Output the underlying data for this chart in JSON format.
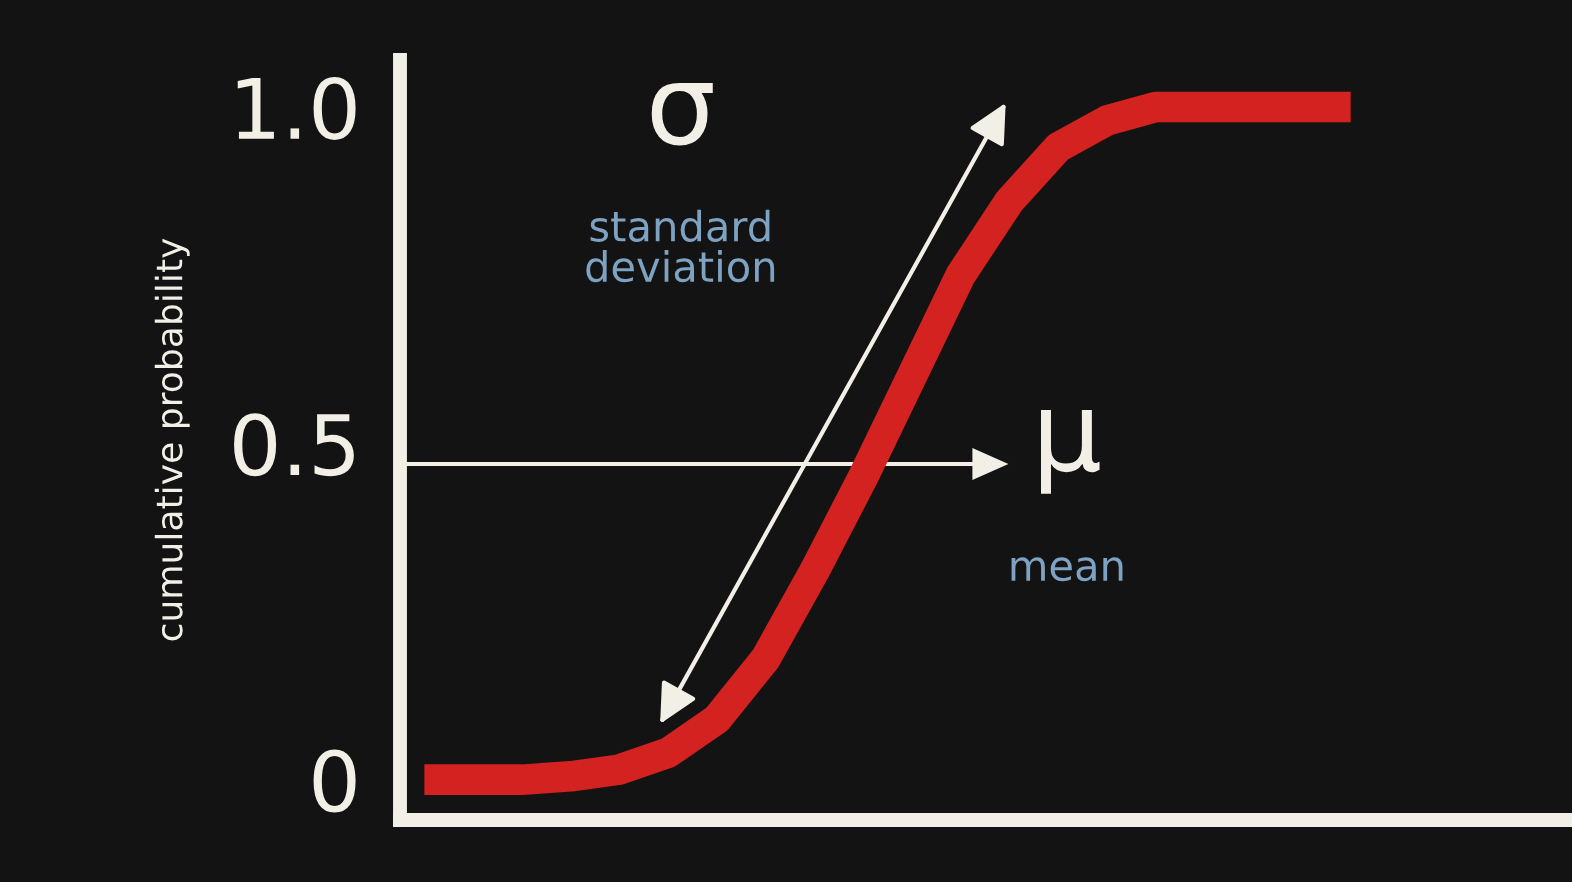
{
  "chart_data": {
    "type": "line",
    "ylabel": "cumulative probability",
    "categories": [
      null,
      null,
      null,
      null,
      null,
      null,
      null,
      null,
      null,
      null,
      null,
      null,
      null,
      null,
      null,
      null,
      null,
      null,
      null,
      null
    ],
    "series": [
      {
        "color": "#d3221f",
        "values": [
          0,
          0,
          0,
          0.005,
          0.015,
          0.04,
          0.09,
          0.18,
          0.31,
          0.45,
          0.6,
          0.75,
          0.86,
          0.94,
          0.98,
          1.0,
          1.0,
          1.0,
          1.0,
          1.0
        ]
      }
    ],
    "ylim": [
      -0.06,
      1.07
    ],
    "yticks": [
      {
        "value": 0,
        "label": "0"
      },
      0.5,
      {
        "value": 1.0,
        "label": "1.0"
      }
    ],
    "annotations": [
      "σ",
      "standard\ndeviation",
      "μ",
      "mean"
    ],
    "grid": false,
    "legend": false,
    "marker": "none",
    "line_style": "solid"
  }
}
